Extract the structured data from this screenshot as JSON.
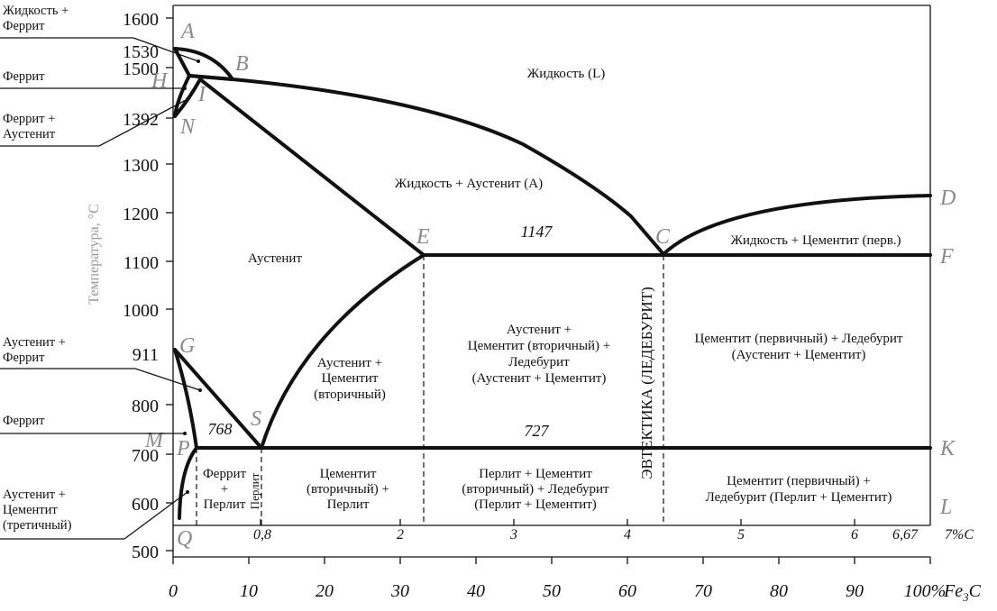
{
  "diagram": {
    "y_axis_label": "Температура, °C",
    "y_ticks": [
      "1600",
      "1530",
      "1500",
      "1392",
      "1300",
      "1200",
      "1100",
      "1000",
      "911",
      "800",
      "700",
      "600",
      "500"
    ],
    "x_ticks_fe3c": [
      "0",
      "10",
      "20",
      "30",
      "40",
      "50",
      "60",
      "70",
      "80",
      "90",
      "100%"
    ],
    "x_axis_unit": "Fe",
    "x_axis_unit_sub": "3",
    "x_axis_unit_tail": "C",
    "carbon_ticks": [
      "0,8",
      "2",
      "3",
      "4",
      "5",
      "6",
      "6,67",
      "7%C"
    ],
    "points": [
      "A",
      "B",
      "H",
      "I",
      "N",
      "E",
      "C",
      "D",
      "F",
      "G",
      "S",
      "M",
      "P",
      "K",
      "L",
      "Q"
    ],
    "temps": [
      "1147",
      "768",
      "727"
    ],
    "phases": {
      "liquid": "Жидкость (L)",
      "liquid_austenite": "Жидкость + Аустенит (A)",
      "liquid_cementite": "Жидкость + Цементит (перв.)",
      "austenite": "Аустенит",
      "aust_cem_sec": [
        "Аустенит +",
        "Цементит",
        "(вторичный)"
      ],
      "aust_cem_led": [
        "Аустенит +",
        "Цементит (вторичный) +",
        "Ледебурит",
        "(Аустенит + Цементит)"
      ],
      "cem_led_upper": [
        "Цементит (первичный) + Ледебурит",
        "(Аустенит + Цементит)"
      ],
      "ferrite_pearlite": [
        "Феррит",
        "+",
        "Перлит"
      ],
      "pearlite": "Перлит",
      "cem_sec_pearlite": [
        "Цементит",
        "(вторичный) +",
        "Перлит"
      ],
      "pearl_cem_led": [
        "Перлит + Цементит",
        "(вторичный) + Ледебурит",
        "(Перлит + Цементит)"
      ],
      "cem_led_lower": [
        "Цементит (первичный) +",
        "Ледебурит (Перлит + Цементит)"
      ],
      "eutectic": "ЭВТЕКТИКА (ЛЕДЕБУРИТ)"
    },
    "side_labels": {
      "liq_ferrite": [
        "Жидкость +",
        "Феррит"
      ],
      "ferrite_top": "Феррит",
      "ferrite_aust": [
        "Феррит +",
        "Аустенит"
      ],
      "aust_ferrite": [
        "Аустенит +",
        "Феррит"
      ],
      "ferrite_low": "Феррит",
      "aust_cem_tert": [
        "Аустенит +",
        "Цементит",
        "(третичный)"
      ]
    }
  }
}
